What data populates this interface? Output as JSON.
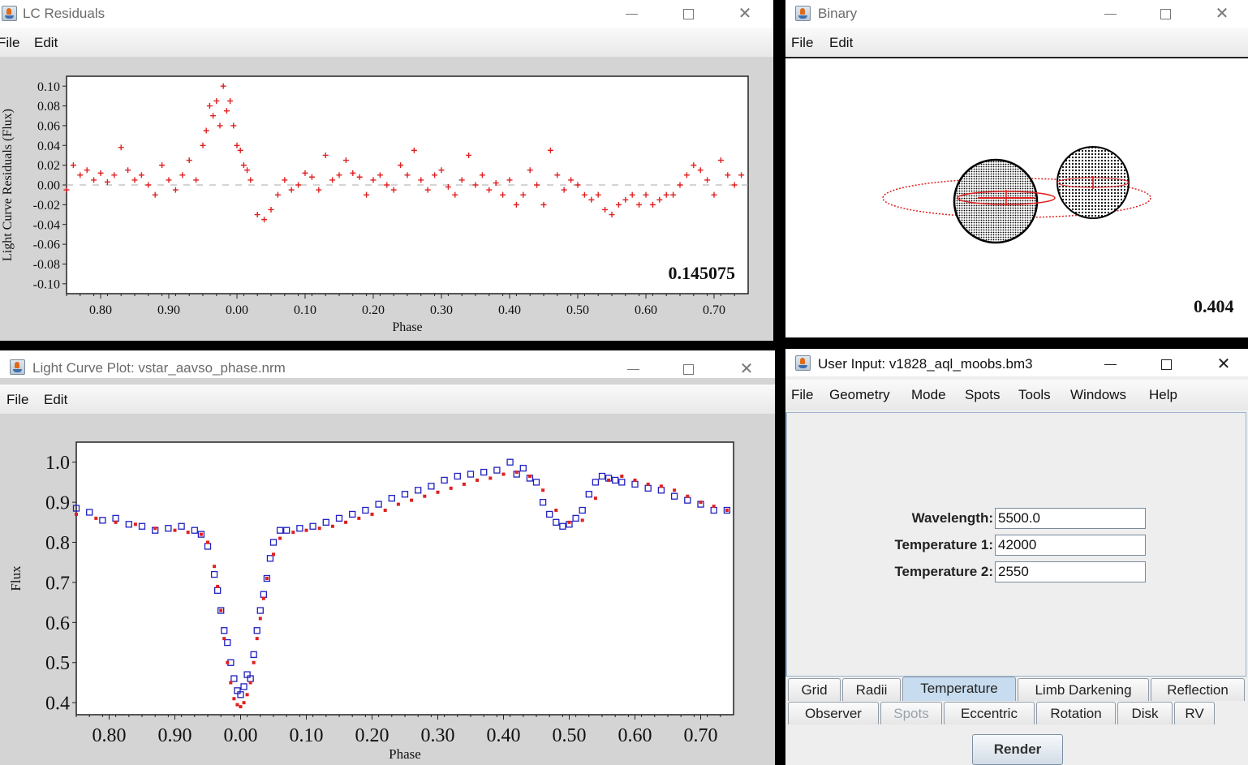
{
  "residuals_window": {
    "title": "LC Residuals",
    "menu": [
      "File",
      "Edit"
    ],
    "chart_data": {
      "type": "scatter",
      "xlabel": "Phase",
      "ylabel": "Light Curve Residuals (Flux)",
      "xtick_labels": [
        "0.80",
        "0.90",
        "0.00",
        "0.10",
        "0.20",
        "0.30",
        "0.40",
        "0.50",
        "0.60",
        "0.70"
      ],
      "xlim": [
        -0.25,
        0.75
      ],
      "ylim": [
        -0.11,
        0.11
      ],
      "ytick_labels": [
        "0.10",
        "0.08",
        "0.06",
        "0.04",
        "0.02",
        "0.00",
        "-0.02",
        "-0.04",
        "-0.06",
        "-0.08",
        "-0.10"
      ],
      "annotation": "0.145075",
      "marker": "+",
      "color": "#e02020",
      "series": [
        {
          "x": [
            -0.25,
            -0.24,
            -0.23,
            -0.22,
            -0.21,
            -0.2,
            -0.19,
            -0.18,
            -0.17,
            -0.16,
            -0.15,
            -0.14,
            -0.13,
            -0.12,
            -0.11,
            -0.1,
            -0.09,
            -0.08,
            -0.07,
            -0.06,
            -0.05,
            -0.045,
            -0.04,
            -0.035,
            -0.03,
            -0.025,
            -0.02,
            -0.015,
            -0.01,
            -0.005,
            0.0,
            0.005,
            0.01,
            0.015,
            0.02,
            0.03,
            0.04,
            0.05,
            0.06,
            0.07,
            0.08,
            0.09,
            0.1,
            0.11,
            0.12,
            0.13,
            0.14,
            0.15,
            0.16,
            0.17,
            0.18,
            0.19,
            0.2,
            0.21,
            0.22,
            0.23,
            0.24,
            0.25,
            0.26,
            0.27,
            0.28,
            0.29,
            0.3,
            0.31,
            0.32,
            0.33,
            0.34,
            0.35,
            0.36,
            0.37,
            0.38,
            0.39,
            0.4,
            0.41,
            0.42,
            0.43,
            0.44,
            0.45,
            0.46,
            0.47,
            0.48,
            0.49,
            0.5,
            0.51,
            0.52,
            0.53,
            0.54,
            0.55,
            0.56,
            0.57,
            0.58,
            0.59,
            0.6,
            0.61,
            0.62,
            0.63,
            0.64,
            0.65,
            0.66,
            0.67,
            0.68,
            0.69,
            0.7,
            0.71,
            0.72,
            0.73,
            0.74
          ],
          "y": [
            -0.005,
            0.02,
            0.01,
            0.015,
            0.005,
            0.012,
            0.003,
            0.01,
            0.038,
            0.015,
            0.005,
            0.01,
            0.0,
            -0.01,
            0.02,
            0.005,
            -0.005,
            0.01,
            0.025,
            0.005,
            0.04,
            0.055,
            0.08,
            0.07,
            0.085,
            0.06,
            0.1,
            0.075,
            0.085,
            0.06,
            0.04,
            0.035,
            0.02,
            0.015,
            0.005,
            -0.03,
            -0.035,
            -0.025,
            -0.01,
            0.005,
            -0.005,
            0.0,
            0.012,
            0.008,
            -0.005,
            0.03,
            0.005,
            0.01,
            0.025,
            0.012,
            0.008,
            -0.01,
            0.005,
            0.01,
            0.0,
            -0.005,
            0.02,
            0.01,
            0.035,
            0.005,
            -0.005,
            0.01,
            0.015,
            -0.002,
            -0.01,
            0.005,
            0.03,
            0.0,
            0.01,
            -0.005,
            0.002,
            -0.01,
            0.005,
            -0.02,
            -0.01,
            0.015,
            0.0,
            -0.02,
            0.035,
            0.01,
            -0.005,
            0.005,
            0.0,
            -0.01,
            -0.015,
            -0.01,
            -0.025,
            -0.03,
            -0.02,
            -0.015,
            -0.01,
            -0.02,
            -0.01,
            -0.02,
            -0.015,
            -0.01,
            -0.01,
            0.0,
            0.01,
            0.02,
            0.015,
            0.005,
            -0.01,
            0.025,
            0.01,
            0.0,
            0.01
          ]
        }
      ]
    }
  },
  "binary_window": {
    "title": "Binary",
    "menu": [
      "File",
      "Edit"
    ],
    "phase_value": "0.404"
  },
  "lightcurve_window": {
    "title": "Light Curve Plot: vstar_aavso_phase.nrm",
    "menu": [
      "File",
      "Edit"
    ],
    "chart_data": {
      "type": "scatter",
      "xlabel": "Phase",
      "ylabel": "Flux",
      "xtick_labels": [
        "0.80",
        "0.90",
        "0.00",
        "0.10",
        "0.20",
        "0.30",
        "0.40",
        "0.50",
        "0.60",
        "0.70"
      ],
      "xlim": [
        -0.25,
        0.75
      ],
      "ylim": [
        0.37,
        1.05
      ],
      "ytick_labels": [
        "1.0",
        "0.9",
        "0.8",
        "0.7",
        "0.6",
        "0.5",
        "0.4"
      ],
      "series": [
        {
          "name": "",
          "marker": "square",
          "color": "#2020c0",
          "x": [
            -0.25,
            -0.23,
            -0.21,
            -0.19,
            -0.17,
            -0.15,
            -0.13,
            -0.11,
            -0.09,
            -0.07,
            -0.06,
            -0.05,
            -0.04,
            -0.035,
            -0.03,
            -0.025,
            -0.02,
            -0.015,
            -0.01,
            -0.005,
            0.0,
            0.005,
            0.01,
            0.015,
            0.02,
            0.025,
            0.03,
            0.035,
            0.04,
            0.045,
            0.05,
            0.06,
            0.07,
            0.09,
            0.11,
            0.13,
            0.15,
            0.17,
            0.19,
            0.21,
            0.23,
            0.25,
            0.27,
            0.29,
            0.31,
            0.33,
            0.35,
            0.37,
            0.39,
            0.41,
            0.42,
            0.43,
            0.44,
            0.45,
            0.46,
            0.47,
            0.48,
            0.49,
            0.5,
            0.51,
            0.52,
            0.53,
            0.54,
            0.55,
            0.56,
            0.57,
            0.58,
            0.6,
            0.62,
            0.64,
            0.66,
            0.68,
            0.7,
            0.72,
            0.74
          ],
          "y": [
            0.885,
            0.875,
            0.855,
            0.86,
            0.845,
            0.84,
            0.83,
            0.835,
            0.84,
            0.83,
            0.82,
            0.79,
            0.72,
            0.68,
            0.63,
            0.58,
            0.55,
            0.5,
            0.46,
            0.43,
            0.42,
            0.44,
            0.47,
            0.46,
            0.52,
            0.58,
            0.63,
            0.67,
            0.71,
            0.76,
            0.8,
            0.83,
            0.83,
            0.835,
            0.84,
            0.85,
            0.86,
            0.87,
            0.88,
            0.895,
            0.91,
            0.92,
            0.93,
            0.94,
            0.955,
            0.965,
            0.97,
            0.975,
            0.98,
            1.0,
            0.97,
            0.985,
            0.96,
            0.95,
            0.9,
            0.87,
            0.85,
            0.84,
            0.845,
            0.86,
            0.88,
            0.92,
            0.95,
            0.965,
            0.96,
            0.955,
            0.95,
            0.945,
            0.935,
            0.93,
            0.915,
            0.905,
            0.895,
            0.88,
            0.88
          ]
        },
        {
          "name": "",
          "marker": "square-small",
          "color": "#e02020",
          "x": [
            -0.25,
            -0.22,
            -0.19,
            -0.16,
            -0.13,
            -0.1,
            -0.08,
            -0.06,
            -0.05,
            -0.04,
            -0.035,
            -0.03,
            -0.025,
            -0.02,
            -0.015,
            -0.01,
            -0.005,
            0.0,
            0.005,
            0.01,
            0.015,
            0.02,
            0.025,
            0.03,
            0.035,
            0.04,
            0.05,
            0.06,
            0.08,
            0.1,
            0.12,
            0.14,
            0.16,
            0.18,
            0.2,
            0.22,
            0.24,
            0.26,
            0.28,
            0.3,
            0.32,
            0.34,
            0.36,
            0.38,
            0.4,
            0.42,
            0.44,
            0.46,
            0.48,
            0.5,
            0.52,
            0.54,
            0.56,
            0.58,
            0.6,
            0.62,
            0.64,
            0.66,
            0.68,
            0.7,
            0.72,
            0.74
          ],
          "y": [
            0.87,
            0.86,
            0.85,
            0.845,
            0.835,
            0.83,
            0.825,
            0.82,
            0.8,
            0.74,
            0.69,
            0.63,
            0.56,
            0.5,
            0.45,
            0.41,
            0.395,
            0.39,
            0.4,
            0.42,
            0.45,
            0.5,
            0.56,
            0.61,
            0.66,
            0.71,
            0.77,
            0.81,
            0.825,
            0.83,
            0.835,
            0.84,
            0.85,
            0.86,
            0.87,
            0.88,
            0.895,
            0.905,
            0.915,
            0.925,
            0.935,
            0.945,
            0.955,
            0.96,
            0.97,
            0.975,
            0.965,
            0.93,
            0.88,
            0.85,
            0.855,
            0.91,
            0.955,
            0.965,
            0.955,
            0.945,
            0.94,
            0.93,
            0.915,
            0.9,
            0.89,
            0.88
          ]
        }
      ]
    }
  },
  "userinput_window": {
    "title": "User Input: v1828_aql_moobs.bm3",
    "menu": [
      "File",
      "Geometry",
      "Mode",
      "Spots",
      "Tools",
      "Windows",
      "Help"
    ],
    "fields": [
      {
        "label": "Wavelength:",
        "value": "5500.0"
      },
      {
        "label": "Temperature 1:",
        "value": "42000"
      },
      {
        "label": "Temperature 2:",
        "value": "2550"
      }
    ],
    "tabs_row1": [
      "Grid",
      "Radii",
      "Temperature",
      "Limb Darkening",
      "Reflection"
    ],
    "tabs_row2": [
      "Observer",
      "Spots",
      "Eccentric",
      "Rotation",
      "Disk",
      "RV"
    ],
    "active_tab": "Temperature",
    "render_label": "Render"
  }
}
